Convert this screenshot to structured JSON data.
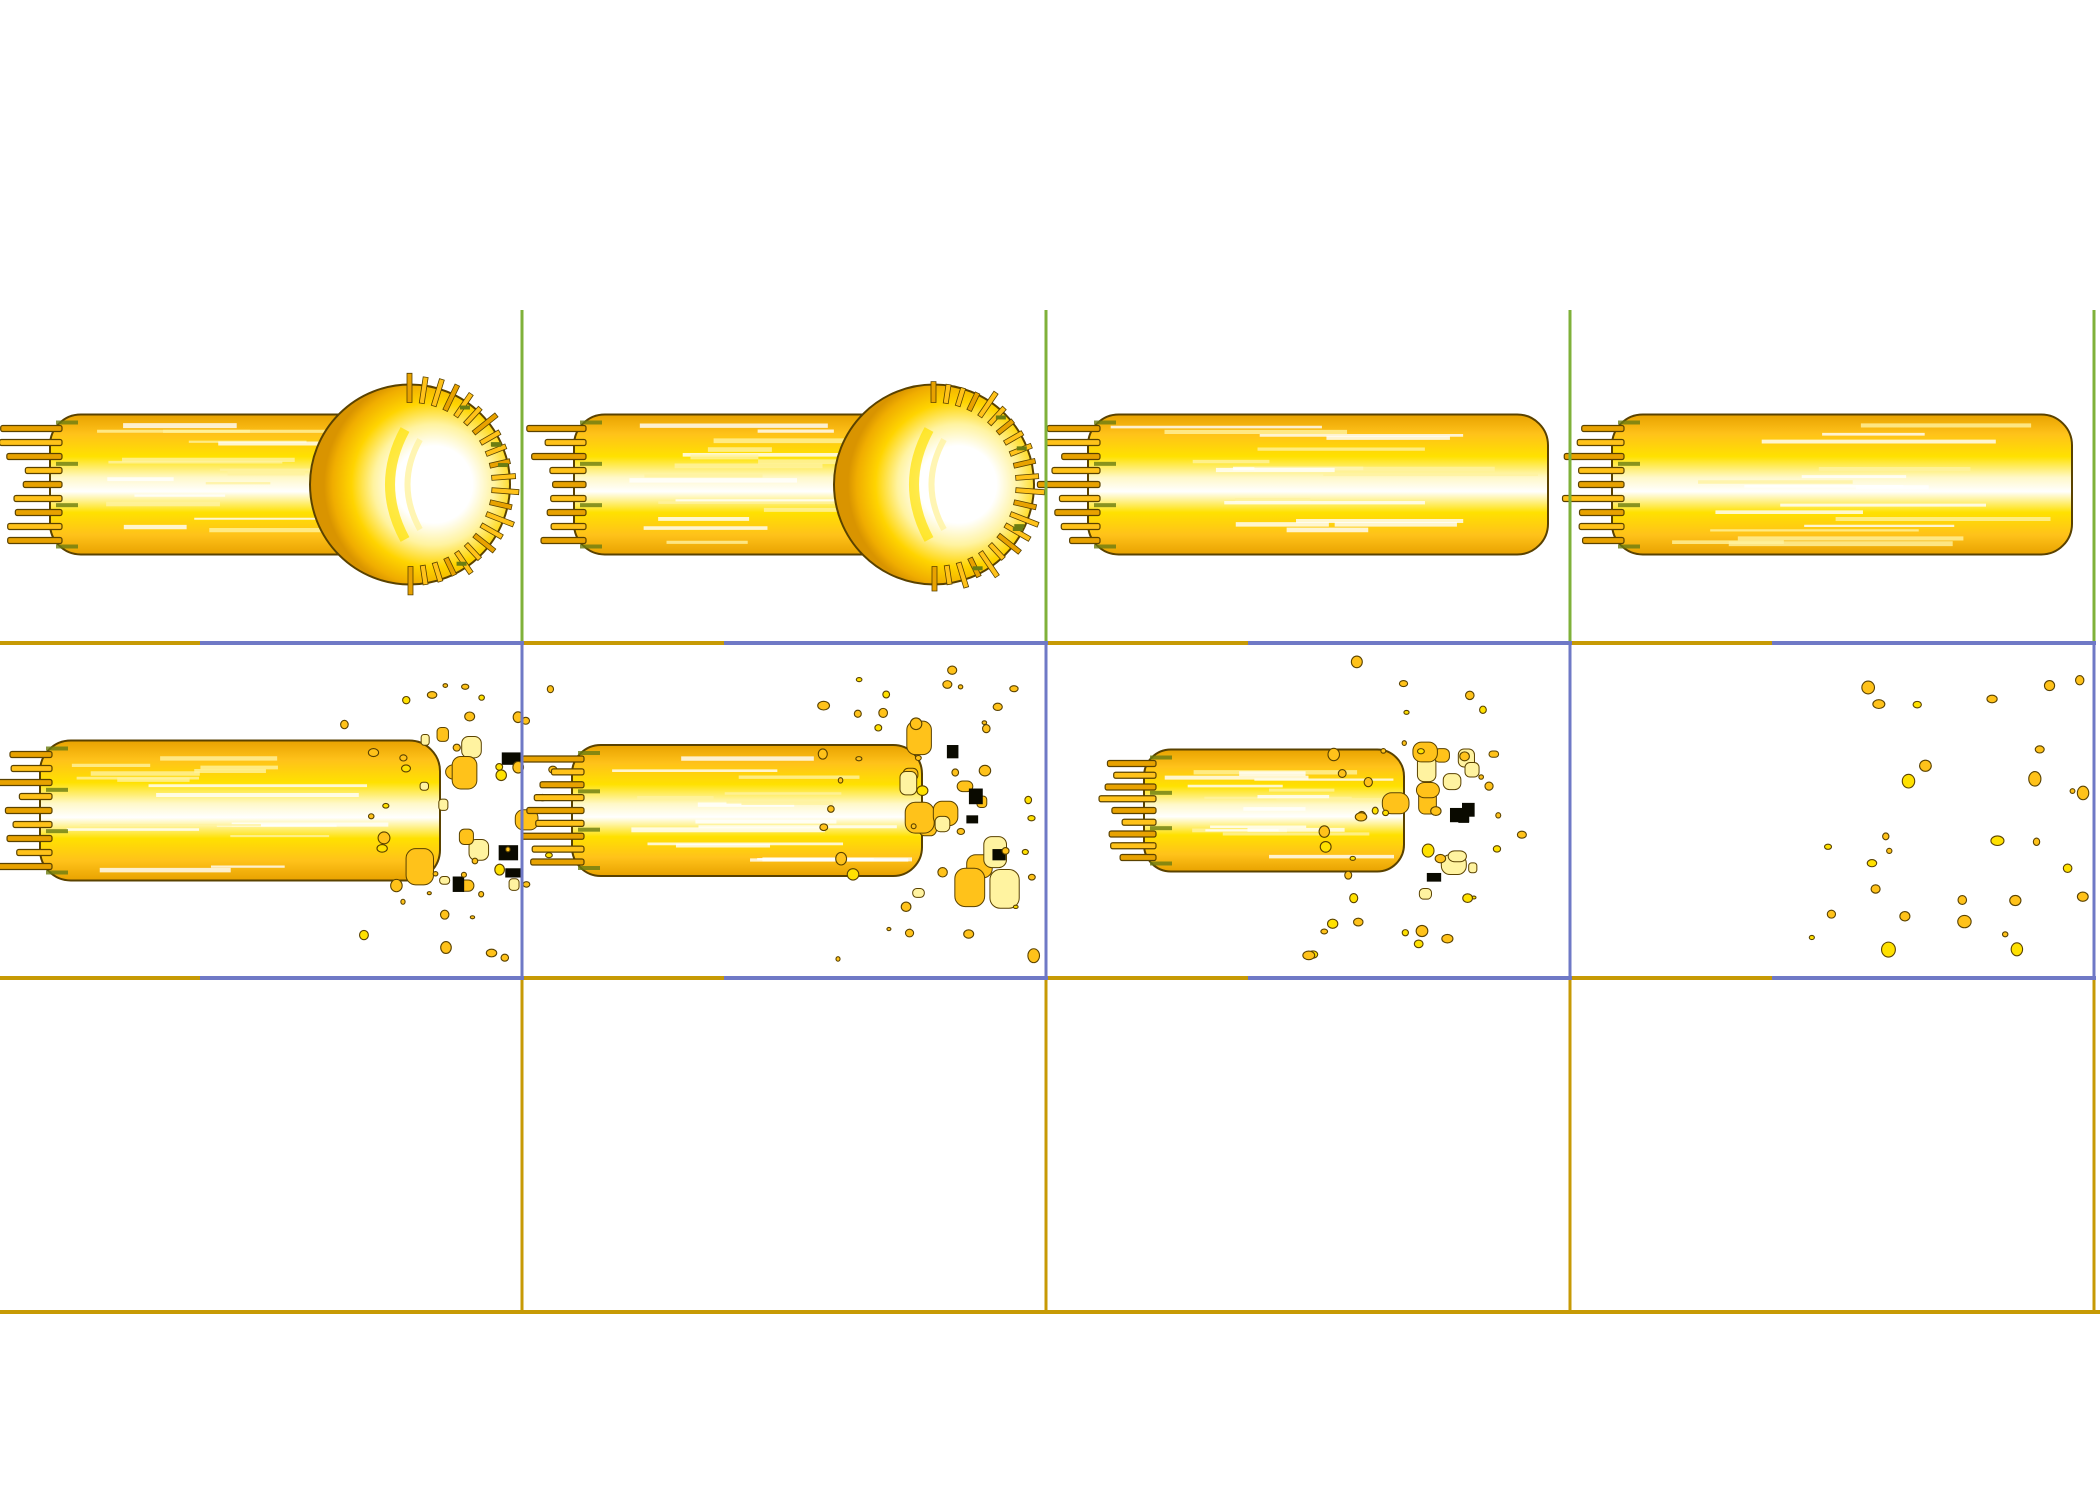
{
  "sprite_sheet": {
    "rows": 3,
    "columns": 4,
    "background": "#ffffff",
    "colors": {
      "core_white": "#ffffff",
      "core_pale": "#fff8c8",
      "flame_yellow": "#ffe100",
      "flame_gold": "#ffc21a",
      "flame_orange": "#e8a200",
      "outline_dark": "#5a4200",
      "outline_green": "#6b7d12",
      "grid_green": "#7fb13a",
      "grid_blue": "#6f79c6",
      "grid_gold": "#c79a05",
      "char_black": "#0a0a00"
    },
    "frames": [
      {
        "row": 0,
        "col": 0,
        "sprite": "energy-beam-with-round-head"
      },
      {
        "row": 0,
        "col": 1,
        "sprite": "energy-beam-with-round-head"
      },
      {
        "row": 0,
        "col": 2,
        "sprite": "energy-beam-body"
      },
      {
        "row": 0,
        "col": 3,
        "sprite": "energy-beam-body"
      },
      {
        "row": 1,
        "col": 0,
        "sprite": "beam-dissipating",
        "remaining": 1.0
      },
      {
        "row": 1,
        "col": 1,
        "sprite": "beam-dissipating",
        "remaining": 0.7
      },
      {
        "row": 1,
        "col": 2,
        "sprite": "beam-dissipating",
        "remaining": 0.4
      },
      {
        "row": 1,
        "col": 3,
        "sprite": "scattered-sparks",
        "remaining": 0.0
      },
      {
        "row": 2,
        "col": 0,
        "sprite": "empty"
      },
      {
        "row": 2,
        "col": 1,
        "sprite": "empty"
      },
      {
        "row": 2,
        "col": 2,
        "sprite": "empty"
      },
      {
        "row": 2,
        "col": 3,
        "sprite": "empty"
      }
    ]
  }
}
